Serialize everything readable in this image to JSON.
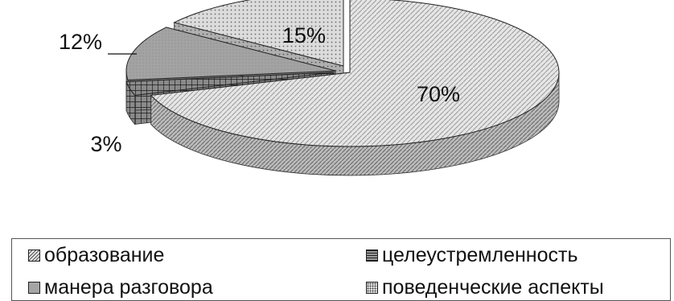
{
  "chart_data": {
    "type": "pie",
    "style": "3d-exploded",
    "categories": [
      "образование",
      "целеустремленность",
      "манера разговора",
      "поведенческие аспекты"
    ],
    "values": [
      70,
      3,
      12,
      15
    ],
    "data_labels": [
      "70%",
      "3%",
      "12%",
      "15%"
    ],
    "legend": {
      "placement": "bottom",
      "entries": [
        "образование",
        "целеустремленность",
        "манера разговора",
        "поведенческие аспекты"
      ]
    },
    "colors": {
      "образование": "#e3e3e3",
      "целеустремленность": "#8c8c8c",
      "манера разговора": "#a5a5a5",
      "поведенческие аспекты": "#d2d2d2"
    }
  }
}
